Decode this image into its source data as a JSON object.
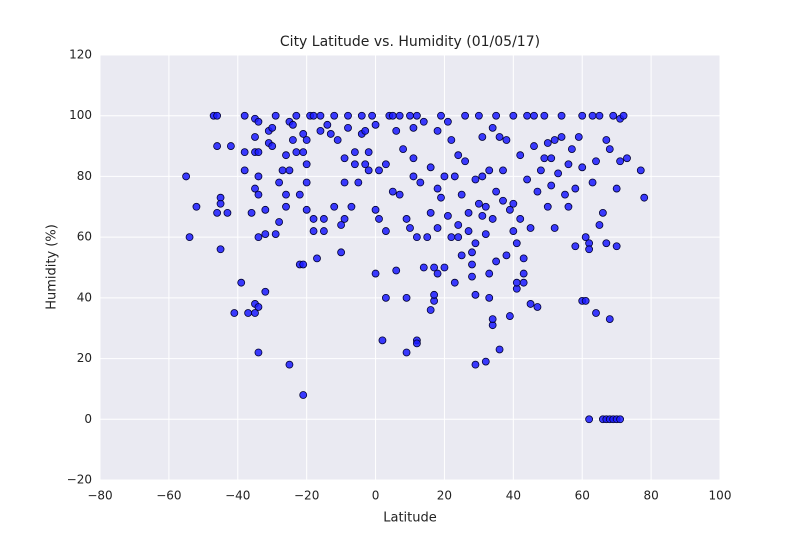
{
  "chart_data": {
    "type": "scatter",
    "title": "City Latitude vs. Humidity (01/05/17)",
    "x_label": "Latitude",
    "y_label": "Humidity (%)",
    "color": "#1a1aff",
    "edge_color": "#000033",
    "background": "#eaeaf2",
    "grid": true,
    "xlim": [
      -80,
      100
    ],
    "ylim": [
      -20,
      120
    ],
    "xticks": [
      {
        "value": -80,
        "label": "−80"
      },
      {
        "value": -60,
        "label": "−60"
      },
      {
        "value": -40,
        "label": "−40"
      },
      {
        "value": -20,
        "label": "−20"
      },
      0,
      20,
      40,
      60,
      80,
      100
    ],
    "yticks": [
      {
        "value": -20,
        "label": "−20"
      },
      0,
      20,
      40,
      60,
      80,
      100,
      120
    ],
    "x": [
      -55,
      -54,
      -52,
      -47,
      -46,
      -46,
      -46,
      -45,
      -45,
      -45,
      -43,
      -42,
      -41,
      -39,
      -38,
      -38,
      -38,
      -37,
      -36,
      -35,
      -35,
      -35,
      -35,
      -34,
      -34,
      -34,
      -34,
      -34,
      -35,
      -35,
      -34,
      -34,
      -32,
      -32,
      -32,
      -31,
      -31,
      -30,
      -30,
      -29,
      -29,
      -28,
      -28,
      -27,
      -26,
      -26,
      -26,
      -25,
      -25,
      -25,
      -24,
      -24,
      -23,
      -23,
      -22,
      -22,
      -21,
      -21,
      -21,
      -21,
      -20,
      -20,
      -20,
      -20,
      -19,
      -18,
      -18,
      -18,
      -17,
      -16,
      -16,
      -15,
      -15,
      -14,
      -13,
      -12,
      -12,
      -11,
      -10,
      -10,
      -9,
      -9,
      -9,
      -8,
      -8,
      -7,
      -6,
      -6,
      -5,
      -4,
      -4,
      -3,
      -3,
      -2,
      -2,
      -1,
      0,
      0,
      0,
      1,
      1,
      2,
      3,
      3,
      3,
      4,
      5,
      5,
      6,
      6,
      7,
      7,
      8,
      9,
      9,
      9,
      10,
      10,
      11,
      11,
      11,
      12,
      12,
      12,
      12,
      13,
      14,
      14,
      15,
      16,
      16,
      16,
      17,
      17,
      17,
      18,
      18,
      18,
      18,
      19,
      19,
      20,
      20,
      21,
      21,
      22,
      22,
      23,
      23,
      24,
      24,
      24,
      25,
      25,
      26,
      26,
      27,
      27,
      28,
      28,
      28,
      29,
      29,
      29,
      29,
      30,
      30,
      31,
      31,
      31,
      32,
      32,
      32,
      33,
      33,
      33,
      34,
      34,
      34,
      34,
      35,
      35,
      35,
      36,
      36,
      37,
      37,
      38,
      38,
      39,
      39,
      40,
      40,
      40,
      41,
      41,
      41,
      42,
      42,
      43,
      43,
      43,
      44,
      44,
      45,
      45,
      46,
      46,
      47,
      47,
      48,
      49,
      49,
      50,
      50,
      51,
      51,
      52,
      52,
      53,
      54,
      54,
      55,
      56,
      56,
      57,
      58,
      58,
      59,
      60,
      60,
      60,
      61,
      61,
      62,
      62,
      62,
      63,
      63,
      64,
      64,
      65,
      65,
      66,
      66,
      67,
      67,
      67,
      68,
      68,
      68,
      69,
      69,
      70,
      70,
      70,
      71,
      71,
      71,
      72,
      73,
      77,
      78
    ],
    "values": [
      80,
      60,
      70,
      100,
      100,
      90,
      68,
      73,
      71,
      56,
      68,
      90,
      35,
      45,
      88,
      82,
      100,
      35,
      68,
      76,
      88,
      93,
      99,
      98,
      88,
      80,
      74,
      60,
      38,
      35,
      37,
      22,
      42,
      61,
      69,
      91,
      95,
      96,
      90,
      100,
      61,
      65,
      78,
      82,
      87,
      74,
      70,
      18,
      82,
      98,
      97,
      92,
      100,
      88,
      74,
      51,
      51,
      8,
      94,
      88,
      84,
      78,
      69,
      92,
      100,
      100,
      62,
      66,
      53,
      100,
      95,
      62,
      66,
      97,
      94,
      70,
      100,
      92,
      55,
      64,
      66,
      78,
      86,
      100,
      96,
      70,
      88,
      84,
      78,
      94,
      100,
      84,
      95,
      88,
      82,
      100,
      69,
      48,
      97,
      82,
      66,
      26,
      40,
      62,
      84,
      100,
      100,
      75,
      49,
      95,
      74,
      100,
      89,
      66,
      40,
      22,
      63,
      100,
      80,
      86,
      96,
      26,
      25,
      60,
      100,
      78,
      50,
      98,
      60,
      83,
      68,
      36,
      39,
      41,
      50,
      48,
      95,
      76,
      63,
      73,
      100,
      50,
      80,
      98,
      67,
      92,
      60,
      45,
      80,
      64,
      60,
      87,
      54,
      74,
      100,
      85,
      68,
      62,
      47,
      51,
      55,
      18,
      41,
      58,
      79,
      71,
      100,
      67,
      80,
      93,
      19,
      61,
      70,
      40,
      48,
      82,
      31,
      33,
      66,
      96,
      100,
      75,
      52,
      23,
      93,
      82,
      72,
      92,
      54,
      34,
      69,
      100,
      62,
      71,
      58,
      43,
      45,
      87,
      66,
      48,
      45,
      53,
      100,
      79,
      38,
      63,
      100,
      90,
      75,
      37,
      82,
      86,
      100,
      70,
      91,
      86,
      77,
      92,
      63,
      81,
      100,
      93,
      74,
      84,
      70,
      89,
      76,
      57,
      93,
      39,
      100,
      83,
      39,
      60,
      0,
      58,
      56,
      100,
      78,
      35,
      85,
      100,
      64,
      0,
      68,
      0,
      58,
      92,
      33,
      89,
      0,
      100,
      0,
      0,
      76,
      57,
      99,
      0,
      85,
      100,
      86,
      82,
      73
    ]
  }
}
